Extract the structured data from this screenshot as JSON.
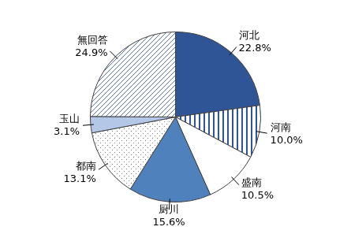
{
  "chart_data": {
    "type": "pie",
    "categories": [
      "河北",
      "河南",
      "盛南",
      "厨川",
      "都南",
      "玉山",
      "無回答"
    ],
    "values": [
      22.8,
      10.0,
      10.5,
      15.6,
      13.1,
      3.1,
      24.9
    ],
    "value_labels": [
      "22.8%",
      "10.0%",
      "10.5%",
      "15.6%",
      "13.1%",
      "3.1%",
      "24.9%"
    ],
    "colors": [
      "#2f5597",
      "#2f5597",
      "#ffffff",
      "#4f81bd",
      "#7f7f7f",
      "#b4c7e7",
      "#5b7ba8"
    ],
    "data_labels": true
  }
}
